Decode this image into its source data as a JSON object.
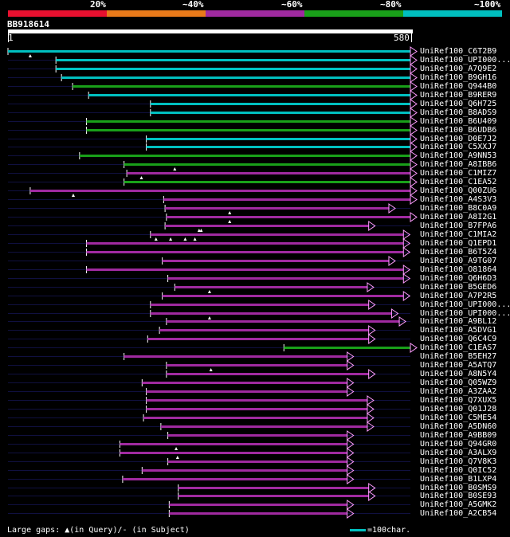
{
  "legend": {
    "labels": [
      "20%",
      "~40%",
      "~60%",
      "~80%",
      "~100%"
    ],
    "colors": [
      "#e8102f",
      "#e97a1a",
      "#a02aa0",
      "#19a019",
      "#00c0c0"
    ]
  },
  "query": {
    "id": "BB918614",
    "start": "1",
    "end": "580",
    "length": 580
  },
  "footer": {
    "gaps_text": "Large gaps: ▲(in Query)/- (in Subject)",
    "scale_text": "=100char."
  },
  "chart_data": {
    "type": "alignment-overview",
    "query_length": 580,
    "hits": [
      {
        "name": "UniRef100_C6T2B9",
        "start": 1,
        "end": 580,
        "color": "cyan",
        "gaps": [
          33
        ]
      },
      {
        "name": "UniRef100_UPI000...",
        "start": 70,
        "end": 580,
        "color": "cyan",
        "gaps": []
      },
      {
        "name": "UniRef100_A7Q9E2",
        "start": 70,
        "end": 580,
        "color": "cyan",
        "gaps": []
      },
      {
        "name": "UniRef100_B9GH16",
        "start": 78,
        "end": 580,
        "color": "cyan",
        "gaps": []
      },
      {
        "name": "UniRef100_Q944B0",
        "start": 94,
        "end": 580,
        "color": "green",
        "gaps": []
      },
      {
        "name": "UniRef100_B9RER9",
        "start": 117,
        "end": 580,
        "color": "cyan",
        "gaps": []
      },
      {
        "name": "UniRef100_Q6H725",
        "start": 206,
        "end": 580,
        "color": "cyan",
        "gaps": []
      },
      {
        "name": "UniRef100_B8ADS9",
        "start": 206,
        "end": 580,
        "color": "cyan",
        "gaps": []
      },
      {
        "name": "UniRef100_B6U409",
        "start": 114,
        "end": 580,
        "color": "green",
        "gaps": []
      },
      {
        "name": "UniRef100_B6UDB6",
        "start": 114,
        "end": 580,
        "color": "green",
        "gaps": []
      },
      {
        "name": "UniRef100_D0E7J2",
        "start": 200,
        "end": 580,
        "color": "cyan",
        "gaps": []
      },
      {
        "name": "UniRef100_C5XXJ7",
        "start": 200,
        "end": 580,
        "color": "cyan",
        "gaps": []
      },
      {
        "name": "UniRef100_A9NN53",
        "start": 104,
        "end": 580,
        "color": "green",
        "gaps": []
      },
      {
        "name": "UniRef100_A8IBB6",
        "start": 168,
        "end": 580,
        "color": "green",
        "gaps": [
          241
        ]
      },
      {
        "name": "UniRef100_C1MIZ7",
        "start": 172,
        "end": 580,
        "color": "purple",
        "gaps": [
          193
        ]
      },
      {
        "name": "UniRef100_C1EA52",
        "start": 168,
        "end": 580,
        "color": "green",
        "gaps": []
      },
      {
        "name": "UniRef100_Q00ZU6",
        "start": 33,
        "end": 580,
        "color": "purple",
        "gaps": [
          95
        ]
      },
      {
        "name": "UniRef100_A4S3V3",
        "start": 225,
        "end": 580,
        "color": "purple",
        "gaps": []
      },
      {
        "name": "UniRef100_B8C0A9",
        "start": 227,
        "end": 549,
        "color": "purple",
        "gaps": [
          320
        ]
      },
      {
        "name": "UniRef100_A8I2G1",
        "start": 229,
        "end": 580,
        "color": "purple",
        "gaps": [
          320
        ]
      },
      {
        "name": "UniRef100_B7FPA6",
        "start": 227,
        "end": 520,
        "color": "purple",
        "gaps": [
          276,
          279
        ]
      },
      {
        "name": "UniRef100_C1MIA2",
        "start": 206,
        "end": 570,
        "color": "purple",
        "gaps": [
          214,
          235,
          256,
          270
        ]
      },
      {
        "name": "UniRef100_Q1EPD1",
        "start": 114,
        "end": 570,
        "color": "purple",
        "gaps": []
      },
      {
        "name": "UniRef100_B6T5Z4",
        "start": 114,
        "end": 570,
        "color": "purple",
        "gaps": []
      },
      {
        "name": "UniRef100_A9TG07",
        "start": 223,
        "end": 549,
        "color": "purple",
        "gaps": []
      },
      {
        "name": "UniRef100_O81864",
        "start": 114,
        "end": 570,
        "color": "purple",
        "gaps": []
      },
      {
        "name": "UniRef100_Q6H6D3",
        "start": 231,
        "end": 570,
        "color": "purple",
        "gaps": []
      },
      {
        "name": "UniRef100_B5GED6",
        "start": 241,
        "end": 518,
        "color": "purple",
        "gaps": [
          291
        ]
      },
      {
        "name": "UniRef100_A7P2R5",
        "start": 223,
        "end": 570,
        "color": "purple",
        "gaps": []
      },
      {
        "name": "UniRef100_UPI000...",
        "start": 206,
        "end": 520,
        "color": "purple",
        "gaps": []
      },
      {
        "name": "UniRef100_UPI000...",
        "start": 206,
        "end": 553,
        "color": "purple",
        "gaps": [
          291
        ]
      },
      {
        "name": "UniRef100_A9BL12",
        "start": 229,
        "end": 564,
        "color": "purple",
        "gaps": []
      },
      {
        "name": "UniRef100_A5DVG1",
        "start": 219,
        "end": 520,
        "color": "purple",
        "gaps": []
      },
      {
        "name": "UniRef100_Q6C4C9",
        "start": 202,
        "end": 520,
        "color": "purple",
        "gaps": []
      },
      {
        "name": "UniRef100_C1EAS7",
        "start": 398,
        "end": 580,
        "color": "green",
        "gaps": []
      },
      {
        "name": "UniRef100_B5EH27",
        "start": 168,
        "end": 489,
        "color": "purple",
        "gaps": []
      },
      {
        "name": "UniRef100_A5ATQ7",
        "start": 229,
        "end": 489,
        "color": "purple",
        "gaps": [
          293
        ]
      },
      {
        "name": "UniRef100_A8N5Y4",
        "start": 229,
        "end": 520,
        "color": "purple",
        "gaps": []
      },
      {
        "name": "UniRef100_Q05WZ9",
        "start": 194,
        "end": 489,
        "color": "purple",
        "gaps": []
      },
      {
        "name": "UniRef100_A3ZAA2",
        "start": 200,
        "end": 489,
        "color": "purple",
        "gaps": []
      },
      {
        "name": "UniRef100_Q7XUX5",
        "start": 200,
        "end": 518,
        "color": "purple",
        "gaps": []
      },
      {
        "name": "UniRef100_Q01J28",
        "start": 200,
        "end": 518,
        "color": "purple",
        "gaps": []
      },
      {
        "name": "UniRef100_C5ME54",
        "start": 196,
        "end": 518,
        "color": "purple",
        "gaps": []
      },
      {
        "name": "UniRef100_A5DN60",
        "start": 221,
        "end": 518,
        "color": "purple",
        "gaps": []
      },
      {
        "name": "UniRef100_A9BB09",
        "start": 231,
        "end": 489,
        "color": "purple",
        "gaps": []
      },
      {
        "name": "UniRef100_Q94GR0",
        "start": 162,
        "end": 489,
        "color": "purple",
        "gaps": [
          243
        ]
      },
      {
        "name": "UniRef100_A3ALX9",
        "start": 162,
        "end": 489,
        "color": "purple",
        "gaps": [
          245
        ]
      },
      {
        "name": "UniRef100_Q7V8K3",
        "start": 231,
        "end": 489,
        "color": "purple",
        "gaps": []
      },
      {
        "name": "UniRef100_Q0IC52",
        "start": 194,
        "end": 489,
        "color": "purple",
        "gaps": []
      },
      {
        "name": "UniRef100_B1LXP4",
        "start": 166,
        "end": 489,
        "color": "purple",
        "gaps": []
      },
      {
        "name": "UniRef100_B0SMS9",
        "start": 246,
        "end": 520,
        "color": "purple",
        "gaps": []
      },
      {
        "name": "UniRef100_B0SE93",
        "start": 246,
        "end": 520,
        "color": "purple",
        "gaps": []
      },
      {
        "name": "UniRef100_A5GMK2",
        "start": 233,
        "end": 489,
        "color": "purple",
        "gaps": []
      },
      {
        "name": "UniRef100_A2CB54",
        "start": 233,
        "end": 489,
        "color": "purple",
        "gaps": []
      }
    ]
  }
}
